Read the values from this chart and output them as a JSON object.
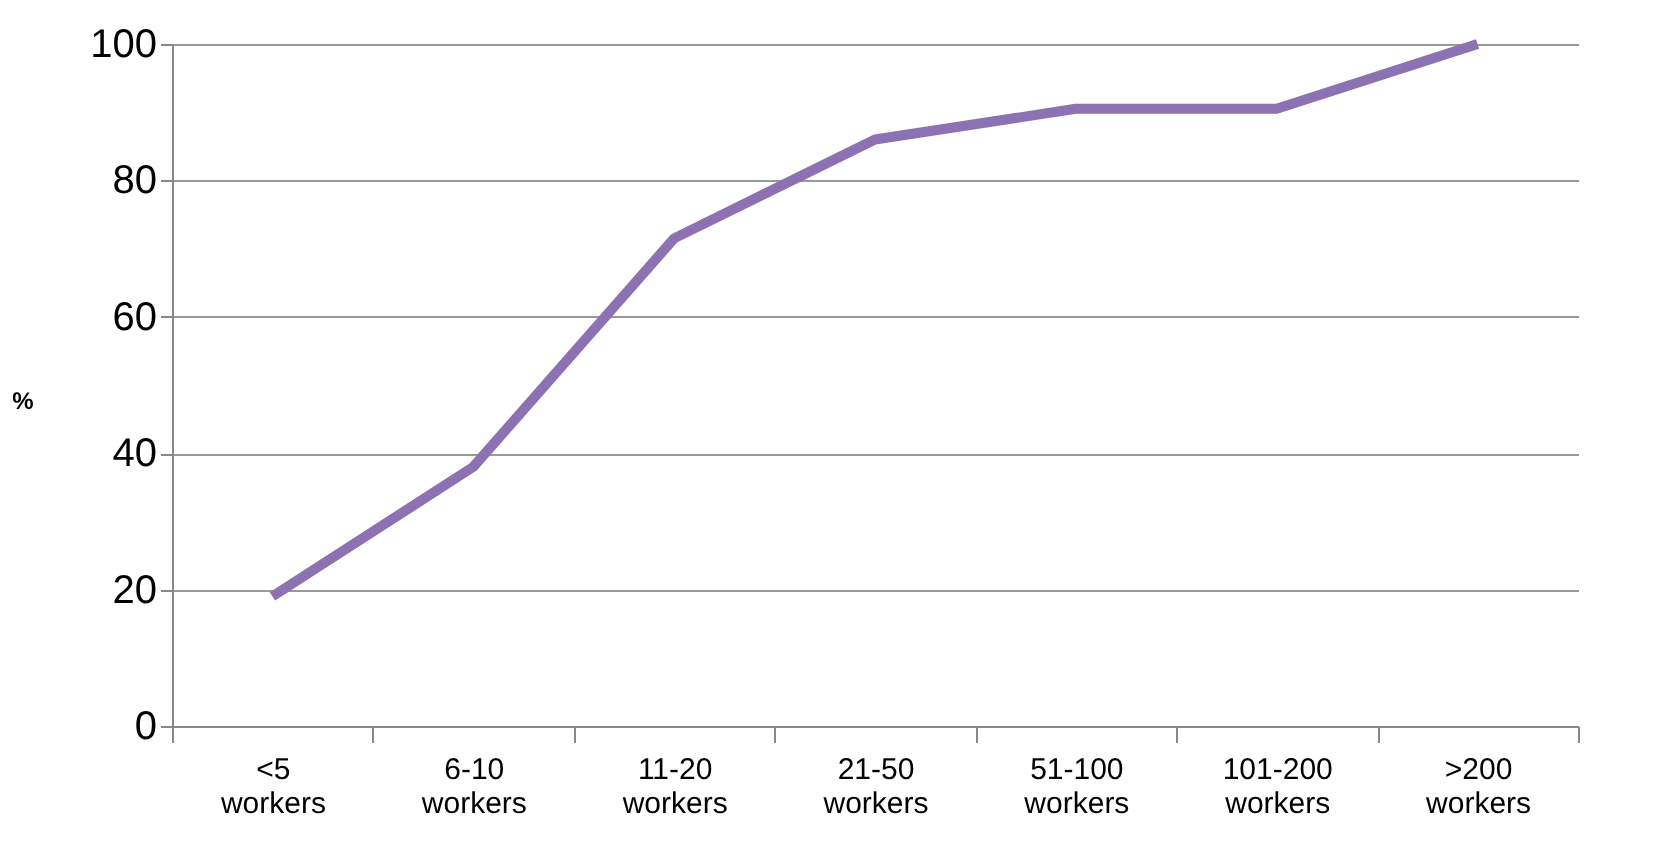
{
  "chart_data": {
    "type": "line",
    "ylabel": "%",
    "categories": [
      "<5 workers",
      "6-10 workers",
      "11-20 workers",
      "21-50 workers",
      "51-100 workers",
      "101-200 workers",
      ">200 workers"
    ],
    "series": [
      {
        "color": "#8c72b2",
        "values": [
          19,
          38,
          71.5,
          86,
          90.5,
          90.5,
          100
        ]
      }
    ],
    "ylim": [
      0,
      100
    ],
    "yticks": [
      0,
      20,
      40,
      60,
      80,
      100
    ],
    "grid": "y",
    "legend": false,
    "marker": "none",
    "line_style": "solid"
  }
}
